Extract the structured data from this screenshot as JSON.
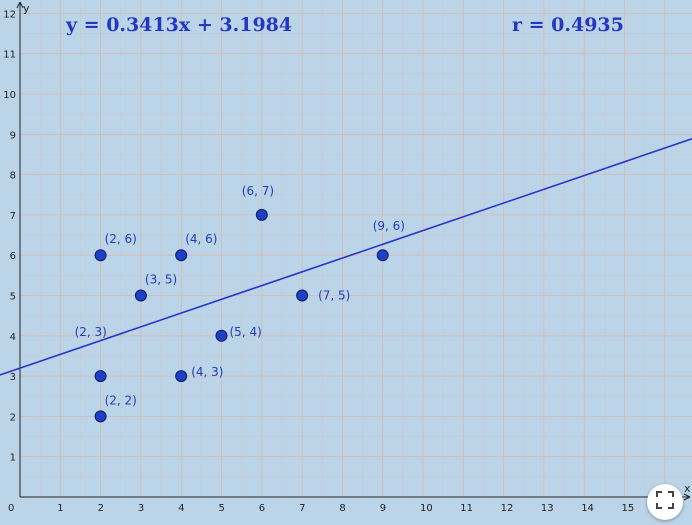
{
  "equations": {
    "regression": "y = 0.3413x + 3.1984",
    "correlation": "r = 0.4935"
  },
  "icons": {
    "fullscreen": "fullscreen-icon"
  },
  "colors": {
    "background": "#bcd4e8",
    "grid": "#d8b8b0",
    "axis": "#222222",
    "line": "#2a36c8",
    "point_fill": "#1f3fc4",
    "point_stroke": "#0a1a70",
    "label": "#1f3fb8"
  },
  "chart_data": {
    "type": "scatter",
    "title": "",
    "xlabel": "x",
    "ylabel": "y",
    "xlim": [
      0,
      16.5
    ],
    "ylim": [
      0,
      12.3
    ],
    "grid": true,
    "x_ticks": [
      0,
      1,
      2,
      3,
      4,
      5,
      6,
      7,
      8,
      9,
      10,
      11,
      12,
      13,
      14,
      15
    ],
    "y_ticks": [
      1,
      2,
      3,
      4,
      5,
      6,
      7,
      8,
      9,
      10,
      11,
      12
    ],
    "points": [
      {
        "x": 2,
        "y": 6,
        "label": "(2, 6)"
      },
      {
        "x": 4,
        "y": 6,
        "label": "(4, 6)"
      },
      {
        "x": 6,
        "y": 7,
        "label": "(6, 7)"
      },
      {
        "x": 9,
        "y": 6,
        "label": "(9, 6)"
      },
      {
        "x": 3,
        "y": 5,
        "label": "(3, 5)"
      },
      {
        "x": 7,
        "y": 5,
        "label": "(7, 5)"
      },
      {
        "x": 5,
        "y": 4,
        "label": "(5, 4)"
      },
      {
        "x": 2,
        "y": 3,
        "label": "(2, 3)"
      },
      {
        "x": 4,
        "y": 3,
        "label": "(4, 3)"
      },
      {
        "x": 2,
        "y": 2,
        "label": "(2, 2)"
      }
    ],
    "regression": {
      "slope": 0.3413,
      "intercept": 3.1984
    }
  }
}
